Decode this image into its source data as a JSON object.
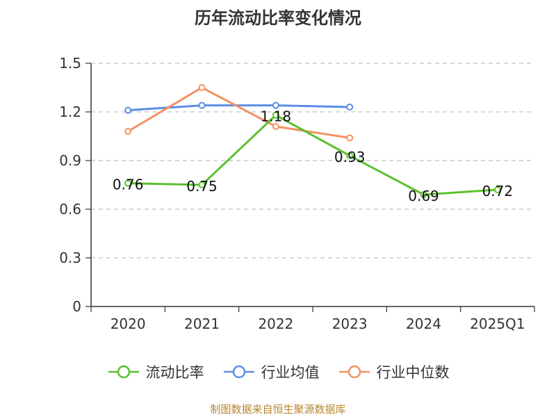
{
  "chart_data": {
    "type": "line",
    "title": "历年流动比率变化情况",
    "categories": [
      "2020",
      "2021",
      "2022",
      "2023",
      "2024",
      "2025Q1"
    ],
    "ylim": [
      0,
      1.5
    ],
    "yticks": [
      "0",
      "0.3",
      "0.6",
      "0.9",
      "1.2",
      "1.5"
    ],
    "grid": "horizontal-dashed",
    "legend_position": "bottom",
    "series": [
      {
        "name": "流动比率",
        "color": "#5cc12e",
        "values": [
          0.76,
          0.75,
          1.18,
          0.93,
          0.69,
          0.72
        ],
        "labels": [
          "0.76",
          "0.75",
          "1.18",
          "0.93",
          "0.69",
          "0.72"
        ]
      },
      {
        "name": "行业均值",
        "color": "#5b8ee6",
        "values": [
          1.21,
          1.24,
          1.24,
          1.23,
          null,
          null
        ]
      },
      {
        "name": "行业中位数",
        "color": "#f39162",
        "values": [
          1.08,
          1.35,
          1.11,
          1.04,
          null,
          null
        ]
      }
    ]
  },
  "footer": "制图数据来自恒生聚源数据库"
}
